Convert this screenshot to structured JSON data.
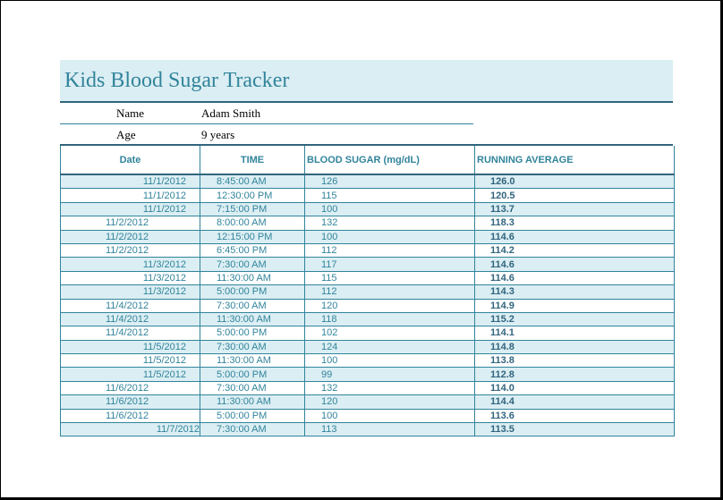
{
  "title": "Kids Blood Sugar Tracker",
  "info": {
    "name_label": "Name",
    "name_value": "Adam Smith",
    "age_label": "Age",
    "age_value": "9 years"
  },
  "columns": {
    "date": "Date",
    "time": "TIME",
    "blood_sugar": "BLOOD SUGAR (mg/dL)",
    "running_average": "RUNNING AVERAGE"
  },
  "rows": [
    {
      "date": "11/1/2012",
      "time": "8:45:00 AM",
      "sugar": "126",
      "avg": "126.0"
    },
    {
      "date": "11/1/2012",
      "time": "12:30:00 PM",
      "sugar": "115",
      "avg": "120.5"
    },
    {
      "date": "11/1/2012",
      "time": "7:15:00 PM",
      "sugar": "100",
      "avg": "113.7"
    },
    {
      "date": "11/2/2012",
      "time": "8:00:00 AM",
      "sugar": "132",
      "avg": "118.3"
    },
    {
      "date": "11/2/2012",
      "time": "12:15:00 PM",
      "sugar": "100",
      "avg": "114.6"
    },
    {
      "date": "11/2/2012",
      "time": "6:45:00 PM",
      "sugar": "112",
      "avg": "114.2"
    },
    {
      "date": "11/3/2012",
      "time": "7:30:00 AM",
      "sugar": "117",
      "avg": "114.6"
    },
    {
      "date": "11/3/2012",
      "time": "11:30:00 AM",
      "sugar": "115",
      "avg": "114.6"
    },
    {
      "date": "11/3/2012",
      "time": "5:00:00 PM",
      "sugar": "112",
      "avg": "114.3"
    },
    {
      "date": "11/4/2012",
      "time": "7:30:00 AM",
      "sugar": "120",
      "avg": "114.9"
    },
    {
      "date": "11/4/2012",
      "time": "11:30:00 AM",
      "sugar": "118",
      "avg": "115.2"
    },
    {
      "date": "11/4/2012",
      "time": "5:00:00 PM",
      "sugar": "102",
      "avg": "114.1"
    },
    {
      "date": "11/5/2012",
      "time": "7:30:00 AM",
      "sugar": "124",
      "avg": "114.8"
    },
    {
      "date": "11/5/2012",
      "time": "11:30:00 AM",
      "sugar": "100",
      "avg": "113.8"
    },
    {
      "date": "11/5/2012",
      "time": "5:00:00 PM",
      "sugar": "99",
      "avg": "112.8"
    },
    {
      "date": "11/6/2012",
      "time": "7:30:00 AM",
      "sugar": "132",
      "avg": "114.0"
    },
    {
      "date": "11/6/2012",
      "time": "11:30:00 AM",
      "sugar": "120",
      "avg": "114.4"
    },
    {
      "date": "11/6/2012",
      "time": "5:00:00 PM",
      "sugar": "100",
      "avg": "113.6"
    },
    {
      "date": "11/7/2012",
      "time": "7:30:00 AM",
      "sugar": "113",
      "avg": "113.5"
    }
  ]
}
